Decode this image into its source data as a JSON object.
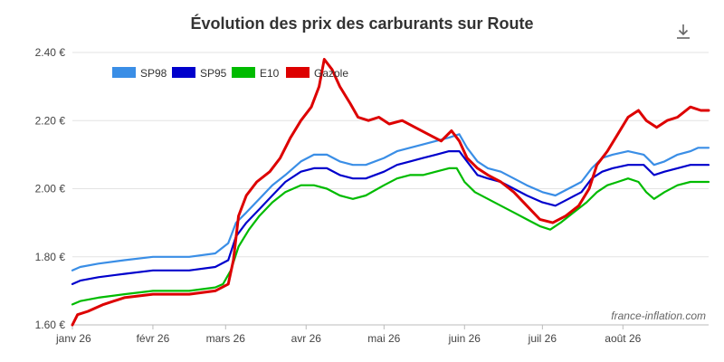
{
  "page": {
    "title": "Évolution des prix des carburants sur Route",
    "download_icon": "download-icon",
    "watermark": "france-inflation.com"
  },
  "chart_data": {
    "type": "line",
    "title": "Évolution des prix des carburants sur Route",
    "xlabel": "",
    "ylabel": "",
    "x_tick_labels": [
      "janv 26",
      "févr 26",
      "mars 26",
      "avr 26",
      "mai 26",
      "juin 26",
      "juil 26",
      "août 26"
    ],
    "x_tick_days": [
      0,
      31,
      59,
      90,
      120,
      151,
      181,
      212
    ],
    "x_range_days": [
      0,
      245
    ],
    "y_tick_labels": [
      "1.60 €",
      "1.80 €",
      "2.00 €",
      "2.20 €",
      "2.40 €"
    ],
    "y_ticks": [
      1.6,
      1.8,
      2.0,
      2.2,
      2.4
    ],
    "ylim": [
      1.6,
      2.4
    ],
    "grid": "horizontal",
    "legend_position": "top-left",
    "series": [
      {
        "name": "SP98",
        "color": "#3a8ee6",
        "points": [
          [
            0,
            1.76
          ],
          [
            3,
            1.77
          ],
          [
            10,
            1.78
          ],
          [
            20,
            1.79
          ],
          [
            31,
            1.8
          ],
          [
            45,
            1.8
          ],
          [
            55,
            1.81
          ],
          [
            60,
            1.84
          ],
          [
            63,
            1.9
          ],
          [
            67,
            1.93
          ],
          [
            72,
            1.97
          ],
          [
            77,
            2.01
          ],
          [
            82,
            2.04
          ],
          [
            88,
            2.08
          ],
          [
            93,
            2.1
          ],
          [
            98,
            2.1
          ],
          [
            103,
            2.08
          ],
          [
            108,
            2.07
          ],
          [
            113,
            2.07
          ],
          [
            120,
            2.09
          ],
          [
            125,
            2.11
          ],
          [
            130,
            2.12
          ],
          [
            135,
            2.13
          ],
          [
            140,
            2.14
          ],
          [
            145,
            2.15
          ],
          [
            149,
            2.16
          ],
          [
            152,
            2.12
          ],
          [
            156,
            2.08
          ],
          [
            160,
            2.06
          ],
          [
            165,
            2.05
          ],
          [
            170,
            2.03
          ],
          [
            175,
            2.01
          ],
          [
            181,
            1.99
          ],
          [
            186,
            1.98
          ],
          [
            191,
            2.0
          ],
          [
            196,
            2.02
          ],
          [
            200,
            2.06
          ],
          [
            204,
            2.09
          ],
          [
            208,
            2.1
          ],
          [
            214,
            2.11
          ],
          [
            220,
            2.1
          ],
          [
            224,
            2.07
          ],
          [
            228,
            2.08
          ],
          [
            233,
            2.1
          ],
          [
            238,
            2.11
          ],
          [
            241,
            2.12
          ],
          [
            245,
            2.12
          ]
        ]
      },
      {
        "name": "SP95",
        "color": "#0000cc",
        "points": [
          [
            0,
            1.72
          ],
          [
            3,
            1.73
          ],
          [
            10,
            1.74
          ],
          [
            20,
            1.75
          ],
          [
            31,
            1.76
          ],
          [
            45,
            1.76
          ],
          [
            55,
            1.77
          ],
          [
            60,
            1.79
          ],
          [
            63,
            1.86
          ],
          [
            67,
            1.9
          ],
          [
            72,
            1.94
          ],
          [
            77,
            1.98
          ],
          [
            82,
            2.02
          ],
          [
            88,
            2.05
          ],
          [
            93,
            2.06
          ],
          [
            98,
            2.06
          ],
          [
            103,
            2.04
          ],
          [
            108,
            2.03
          ],
          [
            113,
            2.03
          ],
          [
            120,
            2.05
          ],
          [
            125,
            2.07
          ],
          [
            130,
            2.08
          ],
          [
            135,
            2.09
          ],
          [
            140,
            2.1
          ],
          [
            145,
            2.11
          ],
          [
            149,
            2.11
          ],
          [
            152,
            2.08
          ],
          [
            156,
            2.04
          ],
          [
            160,
            2.03
          ],
          [
            165,
            2.02
          ],
          [
            170,
            2.0
          ],
          [
            175,
            1.98
          ],
          [
            181,
            1.96
          ],
          [
            186,
            1.95
          ],
          [
            191,
            1.97
          ],
          [
            196,
            1.99
          ],
          [
            200,
            2.03
          ],
          [
            204,
            2.05
          ],
          [
            208,
            2.06
          ],
          [
            214,
            2.07
          ],
          [
            220,
            2.07
          ],
          [
            224,
            2.04
          ],
          [
            228,
            2.05
          ],
          [
            233,
            2.06
          ],
          [
            238,
            2.07
          ],
          [
            245,
            2.07
          ]
        ]
      },
      {
        "name": "E10",
        "color": "#00bb00",
        "points": [
          [
            0,
            1.66
          ],
          [
            3,
            1.67
          ],
          [
            10,
            1.68
          ],
          [
            20,
            1.69
          ],
          [
            31,
            1.7
          ],
          [
            45,
            1.7
          ],
          [
            55,
            1.71
          ],
          [
            58,
            1.72
          ],
          [
            61,
            1.76
          ],
          [
            64,
            1.83
          ],
          [
            68,
            1.88
          ],
          [
            72,
            1.92
          ],
          [
            77,
            1.96
          ],
          [
            82,
            1.99
          ],
          [
            88,
            2.01
          ],
          [
            93,
            2.01
          ],
          [
            98,
            2.0
          ],
          [
            103,
            1.98
          ],
          [
            108,
            1.97
          ],
          [
            113,
            1.98
          ],
          [
            120,
            2.01
          ],
          [
            125,
            2.03
          ],
          [
            130,
            2.04
          ],
          [
            135,
            2.04
          ],
          [
            140,
            2.05
          ],
          [
            145,
            2.06
          ],
          [
            148,
            2.06
          ],
          [
            151,
            2.02
          ],
          [
            155,
            1.99
          ],
          [
            160,
            1.97
          ],
          [
            165,
            1.95
          ],
          [
            170,
            1.93
          ],
          [
            175,
            1.91
          ],
          [
            180,
            1.89
          ],
          [
            184,
            1.88
          ],
          [
            188,
            1.9
          ],
          [
            193,
            1.93
          ],
          [
            198,
            1.96
          ],
          [
            202,
            1.99
          ],
          [
            206,
            2.01
          ],
          [
            210,
            2.02
          ],
          [
            214,
            2.03
          ],
          [
            218,
            2.02
          ],
          [
            221,
            1.99
          ],
          [
            224,
            1.97
          ],
          [
            228,
            1.99
          ],
          [
            233,
            2.01
          ],
          [
            238,
            2.02
          ],
          [
            245,
            2.02
          ]
        ]
      },
      {
        "name": "Gazole",
        "color": "#dd0000",
        "points": [
          [
            0,
            1.6
          ],
          [
            2,
            1.63
          ],
          [
            6,
            1.64
          ],
          [
            12,
            1.66
          ],
          [
            20,
            1.68
          ],
          [
            31,
            1.69
          ],
          [
            45,
            1.69
          ],
          [
            55,
            1.7
          ],
          [
            60,
            1.72
          ],
          [
            62,
            1.79
          ],
          [
            64,
            1.92
          ],
          [
            67,
            1.98
          ],
          [
            71,
            2.02
          ],
          [
            76,
            2.05
          ],
          [
            80,
            2.09
          ],
          [
            84,
            2.15
          ],
          [
            88,
            2.2
          ],
          [
            92,
            2.24
          ],
          [
            95,
            2.3
          ],
          [
            97,
            2.38
          ],
          [
            100,
            2.35
          ],
          [
            103,
            2.3
          ],
          [
            107,
            2.25
          ],
          [
            110,
            2.21
          ],
          [
            114,
            2.2
          ],
          [
            118,
            2.21
          ],
          [
            122,
            2.19
          ],
          [
            127,
            2.2
          ],
          [
            132,
            2.18
          ],
          [
            137,
            2.16
          ],
          [
            142,
            2.14
          ],
          [
            146,
            2.17
          ],
          [
            149,
            2.14
          ],
          [
            152,
            2.09
          ],
          [
            156,
            2.06
          ],
          [
            160,
            2.04
          ],
          [
            165,
            2.02
          ],
          [
            170,
            1.99
          ],
          [
            175,
            1.95
          ],
          [
            180,
            1.91
          ],
          [
            185,
            1.9
          ],
          [
            190,
            1.92
          ],
          [
            195,
            1.95
          ],
          [
            199,
            2.0
          ],
          [
            202,
            2.07
          ],
          [
            206,
            2.11
          ],
          [
            210,
            2.16
          ],
          [
            214,
            2.21
          ],
          [
            218,
            2.23
          ],
          [
            221,
            2.2
          ],
          [
            225,
            2.18
          ],
          [
            229,
            2.2
          ],
          [
            233,
            2.21
          ],
          [
            238,
            2.24
          ],
          [
            242,
            2.23
          ],
          [
            245,
            2.23
          ]
        ]
      }
    ]
  }
}
